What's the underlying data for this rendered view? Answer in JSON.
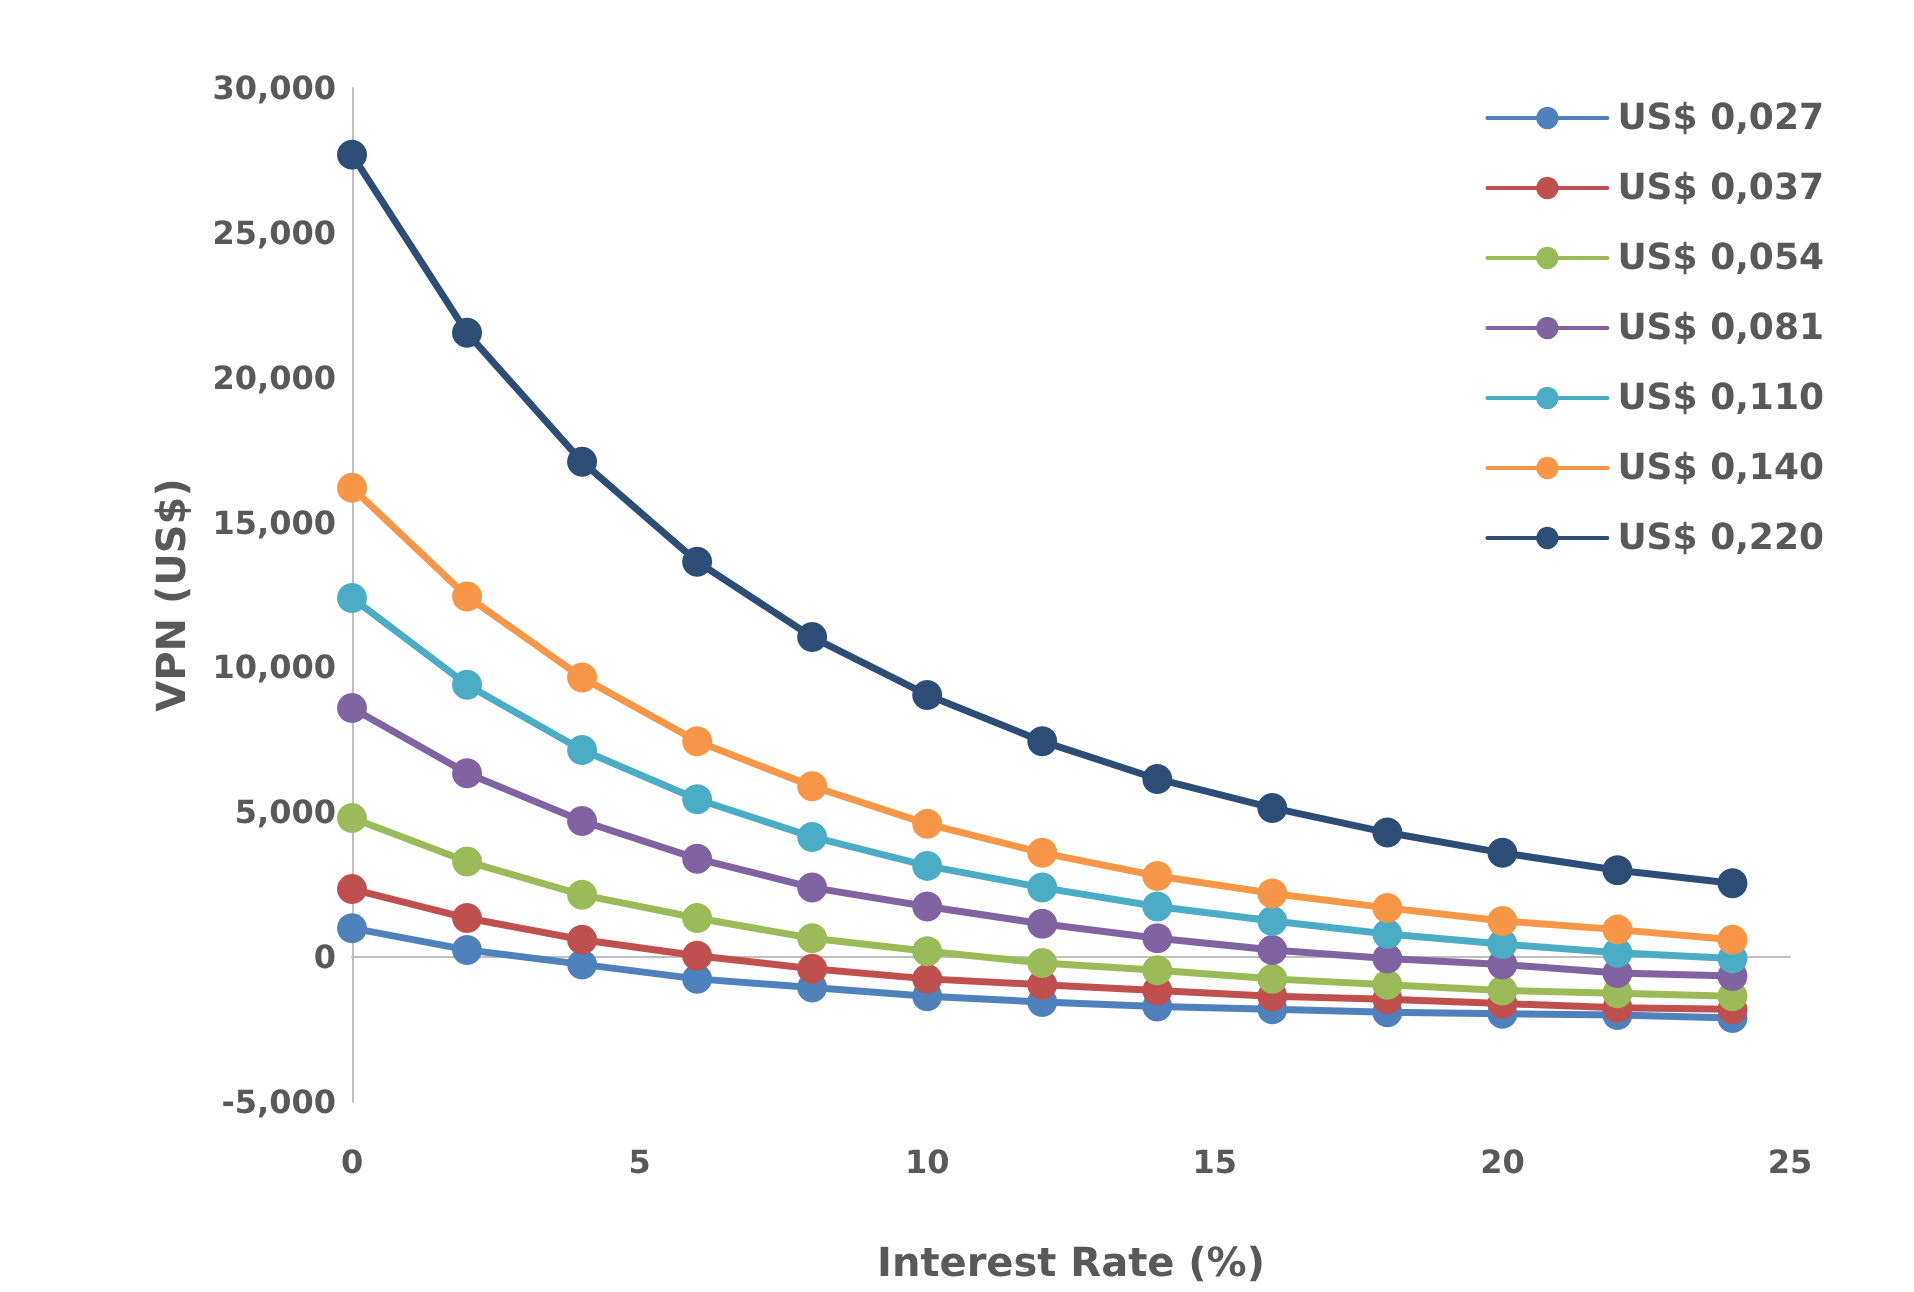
{
  "chart_data": {
    "type": "line",
    "xlabel": "Interest Rate (%)",
    "ylabel": "VPN (US$)",
    "x": [
      0,
      2,
      4,
      6,
      8,
      10,
      12,
      14,
      16,
      18,
      20,
      22,
      24
    ],
    "xlim": [
      0,
      25
    ],
    "xticks": [
      0,
      5,
      10,
      15,
      20,
      25
    ],
    "ylim": [
      -5,
      30
    ],
    "yticks": [
      {
        "value": -5,
        "label": "-5,000"
      },
      0,
      {
        "value": 5,
        "label": "5,000"
      },
      {
        "value": 10,
        "label": "10,000"
      },
      {
        "value": 15,
        "label": "15,000"
      },
      {
        "value": 20,
        "label": "20,000"
      },
      {
        "value": 25,
        "label": "25,000"
      },
      {
        "value": 30,
        "label": "30,000"
      }
    ],
    "legend": "top right",
    "marker": "circle",
    "line_style": "solid",
    "series": [
      {
        "name": "US$ 0,027",
        "color": "#4f81bd",
        "values": [
          1.0,
          0.25,
          -0.25,
          -0.75,
          -1.05,
          -1.35,
          -1.55,
          -1.7,
          -1.8,
          -1.9,
          -1.95,
          -2.0,
          -2.1
        ]
      },
      {
        "name": "US$ 0,037",
        "color": "#c0504d",
        "values": [
          2.35,
          1.35,
          0.6,
          0.05,
          -0.4,
          -0.75,
          -0.95,
          -1.15,
          -1.35,
          -1.45,
          -1.6,
          -1.75,
          -1.8
        ]
      },
      {
        "name": "US$ 0,054",
        "color": "#9bbb59",
        "values": [
          4.8,
          3.3,
          2.15,
          1.35,
          0.65,
          0.2,
          -0.2,
          -0.45,
          -0.75,
          -0.95,
          -1.15,
          -1.25,
          -1.35
        ]
      },
      {
        "name": "US$ 0,081",
        "color": "#8064a2",
        "values": [
          8.6,
          6.35,
          4.7,
          3.4,
          2.4,
          1.75,
          1.15,
          0.65,
          0.25,
          -0.05,
          -0.25,
          -0.55,
          -0.65
        ]
      },
      {
        "name": "US$ 0,110",
        "color": "#4bacc6",
        "values": [
          12.4,
          9.4,
          7.15,
          5.45,
          4.15,
          3.15,
          2.4,
          1.75,
          1.25,
          0.8,
          0.45,
          0.15,
          -0.05
        ]
      },
      {
        "name": "US$ 0,140",
        "color": "#f79646",
        "values": [
          16.2,
          12.45,
          9.65,
          7.45,
          5.9,
          4.6,
          3.6,
          2.8,
          2.2,
          1.7,
          1.25,
          0.95,
          0.6
        ]
      },
      {
        "name": "US$ 0,220",
        "color": "#2c4d75",
        "values": [
          27.7,
          21.55,
          17.1,
          13.65,
          11.05,
          9.05,
          7.45,
          6.15,
          5.15,
          4.3,
          3.6,
          3.0,
          2.55
        ]
      }
    ]
  }
}
